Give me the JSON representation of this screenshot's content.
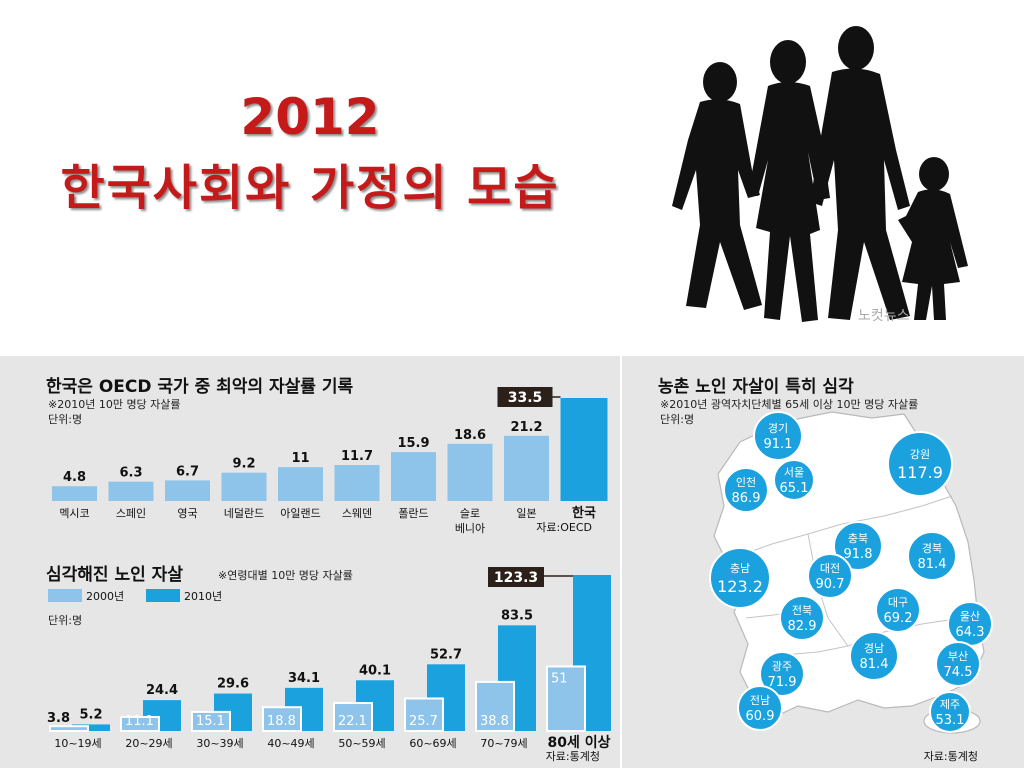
{
  "header": {
    "title_year": "2012",
    "title_main": "한국사회와 가정의 모습"
  },
  "photo": {
    "watermark": "노컷뉴스"
  },
  "colors": {
    "title_red": "#c51a1a",
    "bar_2000": "#8ec3ea",
    "bar_2010": "#1ba1dd",
    "label_box": "#2b201a",
    "panel_bg": "#e6e6e6",
    "map_fill": "#ffffff",
    "bubble": "#1ba1dd"
  },
  "chart_data": [
    {
      "type": "bar",
      "title": "한국은 OECD 국가 중 최악의 자살률 기록",
      "subtitle": "※2010년 10만 명당 자살률",
      "unit": "단위:명",
      "categories": [
        "멕시코",
        "스페인",
        "영국",
        "네덜란드",
        "아일랜드",
        "스웨덴",
        "폴란드",
        "슬로 베니아",
        "일본",
        "한국"
      ],
      "values": [
        4.8,
        6.3,
        6.7,
        9.2,
        11,
        11.7,
        15.9,
        18.6,
        21.2,
        33.5
      ],
      "value_labels": [
        "4.8",
        "6.3",
        "6.7",
        "9.2",
        "11",
        "11.7",
        "15.9",
        "18.6",
        "21.2",
        "33.5"
      ],
      "highlight": "한국",
      "source": "자료:OECD"
    },
    {
      "type": "bar",
      "title": "심각해진 노인 자살",
      "subtitle": "※연령대별 10만 명당 자살률",
      "unit": "단위:명",
      "categories": [
        "10~19세",
        "20~29세",
        "30~39세",
        "40~49세",
        "50~59세",
        "60~69세",
        "70~79세",
        "80세 이상"
      ],
      "series": [
        {
          "name": "2000년",
          "values": [
            3.8,
            11.1,
            15.1,
            18.8,
            22.1,
            25.7,
            38.8,
            51
          ],
          "value_labels": [
            "3.8",
            "11.1",
            "15.1",
            "18.8",
            "22.1",
            "25.7",
            "38.8",
            "51"
          ]
        },
        {
          "name": "2010년",
          "values": [
            5.2,
            24.4,
            29.6,
            34.1,
            40.1,
            52.7,
            83.5,
            123.3
          ],
          "value_labels": [
            "5.2",
            "24.4",
            "29.6",
            "34.1",
            "40.1",
            "52.7",
            "83.5",
            "123.3"
          ]
        }
      ],
      "source": "자료:통계청"
    },
    {
      "type": "map",
      "title": "농촌 노인 자살이 특히 심각",
      "subtitle": "※2010년 광역자치단체별 65세 이상 10만 명당 자살률",
      "unit": "단위:명",
      "regions": [
        {
          "name": "경기",
          "value": "91.1"
        },
        {
          "name": "서울",
          "value": "65.1"
        },
        {
          "name": "인천",
          "value": "86.9"
        },
        {
          "name": "강원",
          "value": "117.9"
        },
        {
          "name": "충북",
          "value": "91.8"
        },
        {
          "name": "충남",
          "value": "123.2"
        },
        {
          "name": "대전",
          "value": "90.7"
        },
        {
          "name": "경북",
          "value": "81.4"
        },
        {
          "name": "대구",
          "value": "69.2"
        },
        {
          "name": "전북",
          "value": "82.9"
        },
        {
          "name": "울산",
          "value": "64.3"
        },
        {
          "name": "경남",
          "value": "81.4"
        },
        {
          "name": "광주",
          "value": "71.9"
        },
        {
          "name": "부산",
          "value": "74.5"
        },
        {
          "name": "전남",
          "value": "60.9"
        },
        {
          "name": "제주",
          "value": "53.1"
        }
      ],
      "source": "자료:통계청"
    }
  ]
}
